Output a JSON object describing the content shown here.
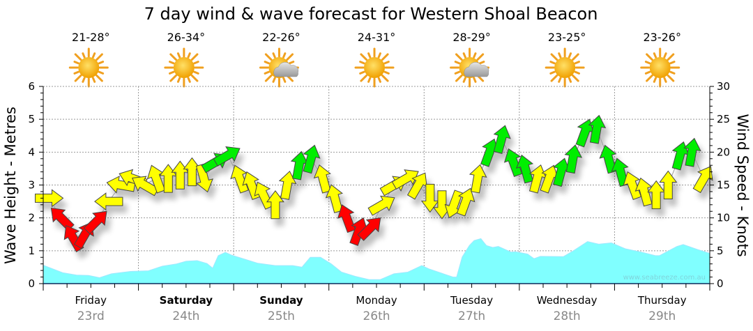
{
  "chart_data": {
    "type": "area+arrows",
    "title": "7 day wind & wave forecast for Western Shoal Beacon",
    "ylabel_left": "Wave Height - Metres",
    "ylabel_right": "Wind Speed - Knots",
    "ylim_left": [
      0,
      6
    ],
    "ylim_right": [
      0,
      30
    ],
    "yticks_left": [
      "0",
      "1",
      "2",
      "3",
      "4",
      "5",
      "6"
    ],
    "yticks_right": [
      "0",
      "5",
      "10",
      "15",
      "20",
      "25",
      "30"
    ],
    "xlim_hours": [
      0,
      168
    ],
    "grid": true,
    "watermark": "www.seabreeze.com.au",
    "days": [
      {
        "name": "Friday",
        "date": "23rd",
        "bold": false,
        "temp": "21-28°",
        "weather": "sunny"
      },
      {
        "name": "Saturday",
        "date": "24th",
        "bold": true,
        "temp": "26-34°",
        "weather": "sunny"
      },
      {
        "name": "Sunday",
        "date": "25th",
        "bold": true,
        "temp": "22-26°",
        "weather": "partly-cloudy"
      },
      {
        "name": "Monday",
        "date": "26th",
        "bold": false,
        "temp": "24-31°",
        "weather": "sunny"
      },
      {
        "name": "Tuesday",
        "date": "27th",
        "bold": false,
        "temp": "28-29°",
        "weather": "partly-cloudy"
      },
      {
        "name": "Wednesday",
        "date": "28th",
        "bold": false,
        "temp": "23-25°",
        "weather": "sunny"
      },
      {
        "name": "Thursday",
        "date": "29th",
        "bold": false,
        "temp": "23-26°",
        "weather": "sunny"
      }
    ],
    "wave_series": {
      "name": "Wave Height (m)",
      "color": "#80ffff",
      "points": [
        [
          0,
          0.56
        ],
        [
          4.9,
          0.33
        ],
        [
          8.4,
          0.26
        ],
        [
          11.4,
          0.25
        ],
        [
          14.2,
          0.18
        ],
        [
          17.2,
          0.3
        ],
        [
          22,
          0.37
        ],
        [
          26.5,
          0.39
        ],
        [
          30,
          0.53
        ],
        [
          33.6,
          0.6
        ],
        [
          36,
          0.68
        ],
        [
          38.8,
          0.7
        ],
        [
          41.3,
          0.61
        ],
        [
          42.7,
          0.47
        ],
        [
          44.1,
          0.85
        ],
        [
          45.9,
          0.95
        ],
        [
          47.6,
          0.86
        ],
        [
          50.6,
          0.75
        ],
        [
          54.1,
          0.62
        ],
        [
          58.5,
          0.55
        ],
        [
          62.9,
          0.55
        ],
        [
          65.2,
          0.5
        ],
        [
          67.3,
          0.8
        ],
        [
          69.9,
          0.8
        ],
        [
          72.6,
          0.6
        ],
        [
          75.2,
          0.35
        ],
        [
          78.7,
          0.22
        ],
        [
          82.2,
          0.12
        ],
        [
          84.9,
          0.12
        ],
        [
          88.4,
          0.3
        ],
        [
          91.9,
          0.35
        ],
        [
          95.4,
          0.55
        ],
        [
          97.2,
          0.45
        ],
        [
          99.6,
          0.35
        ],
        [
          103.3,
          0.2
        ],
        [
          104.2,
          0.2
        ],
        [
          105.6,
          0.81
        ],
        [
          107.4,
          1.16
        ],
        [
          108.6,
          1.31
        ],
        [
          110.3,
          1.37
        ],
        [
          111.7,
          1.16
        ],
        [
          113.3,
          1.1
        ],
        [
          114.7,
          1.13
        ],
        [
          117.9,
          0.96
        ],
        [
          119.1,
          0.97
        ],
        [
          122.1,
          0.9
        ],
        [
          123.7,
          0.76
        ],
        [
          125.3,
          0.83
        ],
        [
          131.1,
          0.82
        ],
        [
          133.5,
          0.99
        ],
        [
          137.2,
          1.28
        ],
        [
          140,
          1.2
        ],
        [
          143.2,
          1.24
        ],
        [
          146.7,
          1.06
        ],
        [
          150.7,
          0.96
        ],
        [
          154.3,
          0.85
        ],
        [
          155.3,
          0.85
        ],
        [
          159.7,
          1.13
        ],
        [
          161.3,
          1.19
        ],
        [
          164.8,
          1.04
        ],
        [
          168,
          0.92
        ]
      ]
    },
    "wind_series": {
      "name": "Wind Speed (knots) & direction (arrow heading, degrees clockwise from up)",
      "colors": {
        "red": "#ff0000",
        "yellow": "#ffff00",
        "green": "#00ee00"
      },
      "points": [
        {
          "h": 1.5,
          "kn": 13,
          "dir": 90,
          "c": "yellow"
        },
        {
          "h": 4.5,
          "kn": 10,
          "dir": 315,
          "c": "red"
        },
        {
          "h": 7.5,
          "kn": 7,
          "dir": 330,
          "c": "red"
        },
        {
          "h": 10.5,
          "kn": 7.5,
          "dir": 30,
          "c": "red"
        },
        {
          "h": 13.5,
          "kn": 9.5,
          "dir": 45,
          "c": "red"
        },
        {
          "h": 16.5,
          "kn": 12.5,
          "dir": 270,
          "c": "yellow"
        },
        {
          "h": 19.5,
          "kn": 15,
          "dir": 280,
          "c": "yellow"
        },
        {
          "h": 22.5,
          "kn": 16,
          "dir": 290,
          "c": "yellow"
        },
        {
          "h": 25.5,
          "kn": 15,
          "dir": 300,
          "c": "yellow"
        },
        {
          "h": 28.5,
          "kn": 16,
          "dir": 340,
          "c": "yellow"
        },
        {
          "h": 31.5,
          "kn": 16,
          "dir": 0,
          "c": "yellow"
        },
        {
          "h": 34.5,
          "kn": 16.5,
          "dir": 0,
          "c": "yellow"
        },
        {
          "h": 37.5,
          "kn": 17,
          "dir": 0,
          "c": "yellow"
        },
        {
          "h": 40.5,
          "kn": 16,
          "dir": 165,
          "c": "yellow"
        },
        {
          "h": 43.5,
          "kn": 18.5,
          "dir": 60,
          "c": "green"
        },
        {
          "h": 46.5,
          "kn": 19.5,
          "dir": 60,
          "c": "green"
        },
        {
          "h": 49.5,
          "kn": 16,
          "dir": 340,
          "c": "yellow"
        },
        {
          "h": 52.5,
          "kn": 15,
          "dir": 340,
          "c": "yellow"
        },
        {
          "h": 55.5,
          "kn": 13.5,
          "dir": 335,
          "c": "yellow"
        },
        {
          "h": 58.5,
          "kn": 12,
          "dir": 0,
          "c": "yellow"
        },
        {
          "h": 61.5,
          "kn": 15,
          "dir": 10,
          "c": "yellow"
        },
        {
          "h": 64.5,
          "kn": 18,
          "dir": 10,
          "c": "green"
        },
        {
          "h": 67.5,
          "kn": 19,
          "dir": 15,
          "c": "green"
        },
        {
          "h": 70.5,
          "kn": 16,
          "dir": 345,
          "c": "yellow"
        },
        {
          "h": 73.5,
          "kn": 13,
          "dir": 345,
          "c": "yellow"
        },
        {
          "h": 76.5,
          "kn": 10,
          "dir": 340,
          "c": "red"
        },
        {
          "h": 79.5,
          "kn": 8,
          "dir": 20,
          "c": "red"
        },
        {
          "h": 82.5,
          "kn": 8.5,
          "dir": 45,
          "c": "red"
        },
        {
          "h": 85.5,
          "kn": 12,
          "dir": 60,
          "c": "yellow"
        },
        {
          "h": 88.5,
          "kn": 15,
          "dir": 60,
          "c": "yellow"
        },
        {
          "h": 91.5,
          "kn": 16,
          "dir": 60,
          "c": "yellow"
        },
        {
          "h": 94.5,
          "kn": 15,
          "dir": 30,
          "c": "yellow"
        },
        {
          "h": 97.5,
          "kn": 13,
          "dir": 180,
          "c": "yellow"
        },
        {
          "h": 100.5,
          "kn": 12,
          "dir": 180,
          "c": "yellow"
        },
        {
          "h": 103.5,
          "kn": 12,
          "dir": 200,
          "c": "yellow"
        },
        {
          "h": 106.5,
          "kn": 12.5,
          "dir": 20,
          "c": "yellow"
        },
        {
          "h": 109.5,
          "kn": 16,
          "dir": 10,
          "c": "yellow"
        },
        {
          "h": 112.5,
          "kn": 20,
          "dir": 20,
          "c": "green"
        },
        {
          "h": 115.5,
          "kn": 22,
          "dir": 15,
          "c": "green"
        },
        {
          "h": 118.5,
          "kn": 18.5,
          "dir": 340,
          "c": "green"
        },
        {
          "h": 121.5,
          "kn": 17.5,
          "dir": 345,
          "c": "green"
        },
        {
          "h": 124.5,
          "kn": 16,
          "dir": 15,
          "c": "yellow"
        },
        {
          "h": 127.5,
          "kn": 16,
          "dir": 20,
          "c": "yellow"
        },
        {
          "h": 130.5,
          "kn": 17,
          "dir": 15,
          "c": "green"
        },
        {
          "h": 133.5,
          "kn": 19,
          "dir": 10,
          "c": "green"
        },
        {
          "h": 136.5,
          "kn": 23,
          "dir": 20,
          "c": "green"
        },
        {
          "h": 139.5,
          "kn": 23.5,
          "dir": 10,
          "c": "green"
        },
        {
          "h": 142.5,
          "kn": 19,
          "dir": 345,
          "c": "green"
        },
        {
          "h": 145.5,
          "kn": 17,
          "dir": 345,
          "c": "green"
        },
        {
          "h": 148.5,
          "kn": 15,
          "dir": 340,
          "c": "yellow"
        },
        {
          "h": 151.5,
          "kn": 14,
          "dir": 345,
          "c": "yellow"
        },
        {
          "h": 154.5,
          "kn": 13.5,
          "dir": 0,
          "c": "yellow"
        },
        {
          "h": 157.5,
          "kn": 15,
          "dir": 0,
          "c": "yellow"
        },
        {
          "h": 160.5,
          "kn": 19.5,
          "dir": 15,
          "c": "green"
        },
        {
          "h": 163.5,
          "kn": 20,
          "dir": 10,
          "c": "green"
        },
        {
          "h": 166.5,
          "kn": 16,
          "dir": 30,
          "c": "yellow"
        }
      ]
    }
  }
}
